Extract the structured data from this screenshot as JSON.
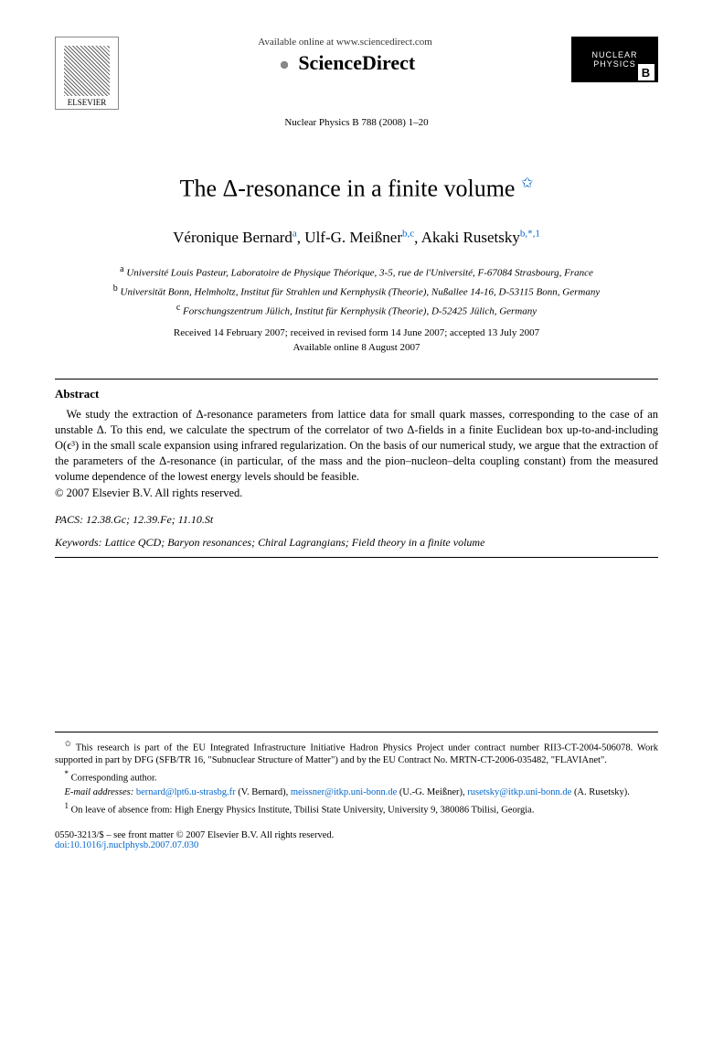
{
  "header": {
    "elsevier_label": "ELSEVIER",
    "sd_available": "Available online at www.sciencedirect.com",
    "sd_name": "ScienceDirect",
    "np_line1": "NUCLEAR",
    "np_line2": "PHYSICS",
    "np_b": "B",
    "journal_ref": "Nuclear Physics B 788 (2008) 1–20"
  },
  "title": "The Δ-resonance in a finite volume",
  "title_star": "✩",
  "authors": [
    {
      "name": "Véronique Bernard",
      "sup": "a"
    },
    {
      "name": "Ulf-G. Meißner",
      "sup": "b,c"
    },
    {
      "name": "Akaki Rusetsky",
      "sup": "b,*,1"
    }
  ],
  "affiliations": [
    {
      "label": "a",
      "text": "Université Louis Pasteur, Laboratoire de Physique Théorique, 3-5, rue de l'Université, F-67084 Strasbourg, France"
    },
    {
      "label": "b",
      "text": "Universität Bonn, Helmholtz, Institut für Strahlen und Kernphysik (Theorie), Nußallee 14-16, D-53115 Bonn, Germany"
    },
    {
      "label": "c",
      "text": "Forschungszentrum Jülich, Institut für Kernphysik (Theorie), D-52425 Jülich, Germany"
    }
  ],
  "dates": "Received 14 February 2007; received in revised form 14 June 2007; accepted 13 July 2007",
  "available_online": "Available online 8 August 2007",
  "abstract": {
    "heading": "Abstract",
    "text": "We study the extraction of Δ-resonance parameters from lattice data for small quark masses, corresponding to the case of an unstable Δ. To this end, we calculate the spectrum of the correlator of two Δ-fields in a finite Euclidean box up-to-and-including O(ϵ³) in the small scale expansion using infrared regularization. On the basis of our numerical study, we argue that the extraction of the parameters of the Δ-resonance (in particular, of the mass and the pion–nucleon–delta coupling constant) from the measured volume dependence of the lowest energy levels should be feasible.",
    "copyright": "© 2007 Elsevier B.V. All rights reserved."
  },
  "pacs": {
    "label": "PACS:",
    "value": "12.38.Gc; 12.39.Fe; 11.10.St"
  },
  "keywords": {
    "label": "Keywords:",
    "value": "Lattice QCD; Baryon resonances; Chiral Lagrangians; Field theory in a finite volume"
  },
  "footnotes": {
    "funding_marker": "✩",
    "funding": "This research is part of the EU Integrated Infrastructure Initiative Hadron Physics Project under contract number RII3-CT-2004-506078. Work supported in part by DFG (SFB/TR 16, \"Subnuclear Structure of Matter\") and by the EU Contract No. MRTN-CT-2006-035482, \"FLAVIAnet\".",
    "corresponding_marker": "*",
    "corresponding": "Corresponding author.",
    "email_label": "E-mail addresses:",
    "emails": [
      {
        "addr": "bernard@lpt6.u-strasbg.fr",
        "who": "(V. Bernard)"
      },
      {
        "addr": "meissner@itkp.uni-bonn.de",
        "who": "(U.-G. Meißner)"
      },
      {
        "addr": "rusetsky@itkp.uni-bonn.de",
        "who": "(A. Rusetsky)"
      }
    ],
    "leave_marker": "1",
    "leave": "On leave of absence from: High Energy Physics Institute, Tbilisi State University, University 9, 380086 Tbilisi, Georgia."
  },
  "footer": {
    "front_matter": "0550-3213/$ – see front matter © 2007 Elsevier B.V. All rights reserved.",
    "doi_label": "doi:",
    "doi": "10.1016/j.nuclphysb.2007.07.030"
  },
  "colors": {
    "link": "#0066cc",
    "text": "#000000",
    "bg": "#ffffff"
  }
}
